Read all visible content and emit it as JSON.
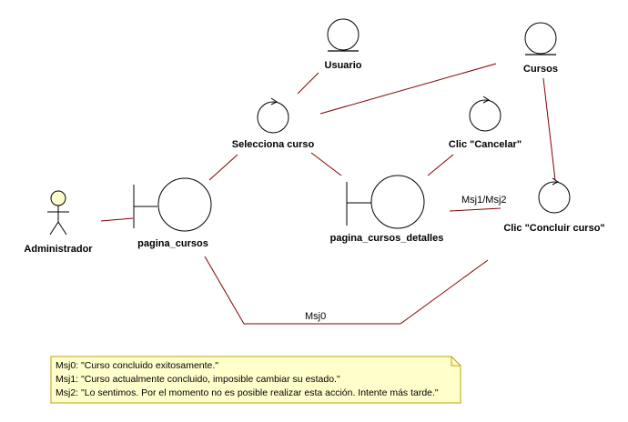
{
  "colors": {
    "link": "#800000",
    "shape_stroke": "#000000",
    "actor_fill": "#ffffcc",
    "note_fill": "#ffffcc",
    "note_border": "#c0a000",
    "background": "#ffffff"
  },
  "nodes": {
    "usuario": {
      "type": "entity",
      "label": "Usuario"
    },
    "cursos": {
      "type": "entity",
      "label": "Cursos"
    },
    "selecciona_curso": {
      "type": "control",
      "label": "Selecciona curso"
    },
    "clic_cancelar": {
      "type": "control",
      "label": "Clic \"Cancelar\""
    },
    "clic_concluir": {
      "type": "control",
      "label": "Clic \"Concluir curso\""
    },
    "administrador": {
      "type": "actor",
      "label": "Administrador"
    },
    "pagina_cursos": {
      "type": "boundary",
      "label": "pagina_cursos"
    },
    "pagina_cursos_detalles": {
      "type": "boundary",
      "label": "pagina_cursos_detalles"
    }
  },
  "edges": [
    {
      "from": "usuario",
      "to": "selecciona_curso",
      "label": ""
    },
    {
      "from": "cursos",
      "to": "selecciona_curso",
      "label": ""
    },
    {
      "from": "cursos",
      "to": "clic_concluir",
      "label": ""
    },
    {
      "from": "selecciona_curso",
      "to": "pagina_cursos",
      "label": ""
    },
    {
      "from": "selecciona_curso",
      "to": "pagina_cursos_detalles",
      "label": ""
    },
    {
      "from": "clic_cancelar",
      "to": "pagina_cursos_detalles",
      "label": ""
    },
    {
      "from": "pagina_cursos_detalles",
      "to": "clic_concluir",
      "label": "Msj1/Msj2"
    },
    {
      "from": "administrador",
      "to": "pagina_cursos",
      "label": ""
    },
    {
      "from": "pagina_cursos",
      "to": "clic_concluir",
      "label": "Msj0"
    }
  ],
  "note": {
    "lines": [
      "Msj0: \"Curso concluido exitosamente.\"",
      "Msj1: \"Curso actualmente concluido, imposible cambiar su estado.\"",
      "Msj2: \"Lo sentimos. Por el momento no es posible realizar esta acción. Intente más tarde.\""
    ]
  }
}
